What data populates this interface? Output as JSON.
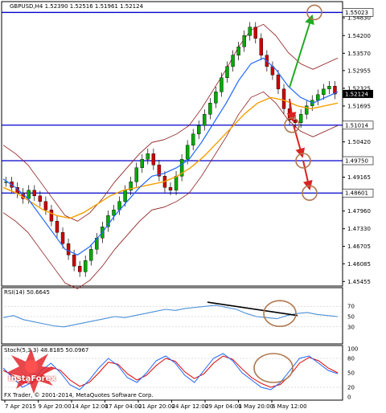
{
  "header": {
    "symbol_line": "GBPUSD,H4  1.52390 1.52516 1.51961 1.52124",
    "rsi_label": "RSI(14) 50.6645",
    "stoch_label": "Stoch(5,3,3) 48.8185 50.0967",
    "copyright": "FX Trader, © 2001-2014, MetaQuotes Software Corp."
  },
  "logo": {
    "brand": "InstaForex",
    "brand_color": "#e3262b"
  },
  "colors": {
    "candle_up": "#00aa00",
    "candle_down": "#cc0000",
    "candle_wick": "#000000",
    "ma_fast": "#1e66ff",
    "ma_slow": "#f5a000",
    "bollinger": "#8b1a1a",
    "level_line": "#0000cc",
    "rsi_line": "#4a90d9",
    "stoch_main": "#1e66ff",
    "stoch_signal": "#e00000",
    "trend_line": "#000000",
    "arrow_up": "#22aa22",
    "arrow_down": "#dd2020",
    "circle": "#b07850",
    "current_price_box": "#ffffff"
  },
  "chart_data": [
    {
      "type": "line",
      "title": "GBPUSD,H4  1.52390 1.52516 1.51961 1.52124",
      "price_axis_ticks": [
        "1.54830",
        "1.54200",
        "1.53570",
        "1.52955",
        "1.52325",
        "1.51695",
        "1.51045",
        "1.50420",
        "1.49750",
        "1.49165",
        "1.48601",
        "1.47960",
        "1.47330",
        "1.46705",
        "1.46085",
        "1.45455"
      ],
      "horizontal_levels": [
        1.55023,
        1.51014,
        1.4975,
        1.48601
      ],
      "horizontal_level_labels": [
        "1.55023",
        "1.51014",
        "1.49750",
        "1.48601"
      ],
      "current_price": "1.52124",
      "time_axis_labels": [
        "7 Apr 2015",
        "9 Apr 20:00",
        "14 Apr 12:00",
        "17 Apr 04:00",
        "21 Apr 20:00",
        "24 Apr 12:00",
        "29 Apr 04:00",
        "1 May 20:00",
        "6 May 12:00"
      ],
      "ylim": [
        1.4535,
        1.5535
      ],
      "series": [
        {
          "name": "Price",
          "values": [
            1.49,
            1.488,
            1.486,
            1.484,
            1.487,
            1.485,
            1.483,
            1.48,
            1.476,
            1.472,
            1.468,
            1.464,
            1.46,
            1.458,
            1.462,
            1.466,
            1.47,
            1.474,
            1.478,
            1.48,
            1.483,
            1.487,
            1.49,
            1.495,
            1.498,
            1.5,
            1.496,
            1.492,
            1.488,
            1.487,
            1.492,
            1.498,
            1.503,
            1.507,
            1.51,
            1.514,
            1.518,
            1.522,
            1.527,
            1.531,
            1.535,
            1.538,
            1.542,
            1.545,
            1.541,
            1.535,
            1.531,
            1.528,
            1.523,
            1.516,
            1.512,
            1.511,
            1.514,
            1.517,
            1.519,
            1.521,
            1.523,
            1.524,
            1.5212
          ]
        },
        {
          "name": "MA fast",
          "values": [
            1.491,
            1.488,
            1.484,
            1.478,
            1.472,
            1.466,
            1.464,
            1.467,
            1.472,
            1.478,
            1.483,
            1.488,
            1.492,
            1.493,
            1.495,
            1.498,
            1.504,
            1.511,
            1.518,
            1.526,
            1.532,
            1.534,
            1.53,
            1.524,
            1.52,
            1.518,
            1.52,
            1.522
          ]
        },
        {
          "name": "MA slow",
          "values": [
            1.488,
            1.486,
            1.483,
            1.48,
            1.478,
            1.477,
            1.479,
            1.482,
            1.485,
            1.487,
            1.488,
            1.489,
            1.49,
            1.492,
            1.495,
            1.499,
            1.504,
            1.509,
            1.514,
            1.518,
            1.52,
            1.519,
            1.517,
            1.516,
            1.517,
            1.518
          ]
        }
      ]
    },
    {
      "type": "line",
      "title": "RSI(14) 50.6645",
      "ylim": [
        0,
        100
      ],
      "y_ticks": [
        "70",
        "50",
        "30"
      ],
      "series": [
        {
          "name": "RSI",
          "values": [
            48,
            52,
            44,
            40,
            36,
            32,
            30,
            34,
            38,
            42,
            46,
            50,
            48,
            52,
            56,
            60,
            64,
            62,
            66,
            68,
            70,
            72,
            68,
            64,
            56,
            50,
            48,
            46,
            52,
            56,
            58,
            54,
            52,
            50
          ]
        }
      ]
    },
    {
      "type": "line",
      "title": "Stoch(5,3,3) 48.8185 50.0967",
      "ylim": [
        0,
        100
      ],
      "y_ticks": [
        "100",
        "80",
        "50",
        "20",
        "0"
      ],
      "series": [
        {
          "name": "Main",
          "values": [
            60,
            40,
            20,
            30,
            55,
            70,
            50,
            25,
            15,
            35,
            60,
            80,
            65,
            40,
            30,
            50,
            75,
            85,
            70,
            45,
            30,
            55,
            80,
            90,
            75,
            50,
            35,
            20,
            15,
            30,
            55,
            80,
            85,
            70,
            55,
            48
          ]
        },
        {
          "name": "Signal",
          "values": [
            55,
            45,
            30,
            28,
            45,
            62,
            55,
            35,
            22,
            30,
            50,
            72,
            68,
            48,
            35,
            45,
            65,
            80,
            74,
            52,
            38,
            48,
            70,
            85,
            78,
            58,
            40,
            28,
            20,
            26,
            45,
            70,
            82,
            75,
            60,
            50
          ]
        }
      ]
    }
  ]
}
